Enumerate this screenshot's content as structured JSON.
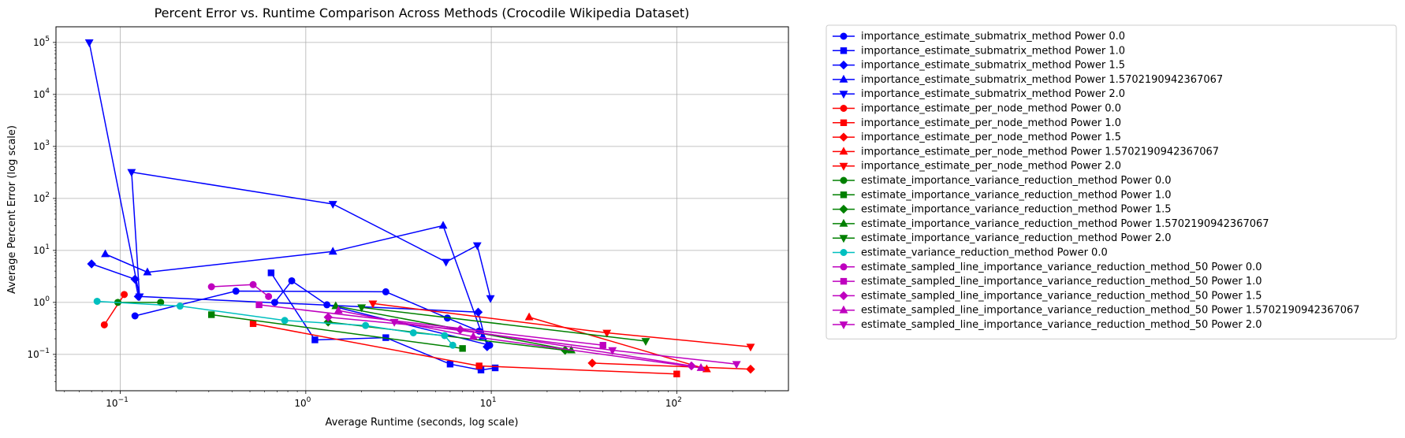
{
  "chart_data": {
    "type": "line",
    "title": "Percent Error vs. Runtime Comparison Across Methods (Crocodile Wikipedia Dataset)",
    "xlabel": "Average Runtime (seconds, log scale)",
    "ylabel": "Average Percent Error (log scale)",
    "xscale": "log",
    "yscale": "log",
    "xlim": [
      0.045,
      400
    ],
    "ylim": [
      0.02,
      200000
    ],
    "grid": true,
    "legend_placement": "outside-right",
    "x_ticks": [
      {
        "value": 0.1,
        "base": "10",
        "exp": "−1"
      },
      {
        "value": 1,
        "base": "10",
        "exp": "0"
      },
      {
        "value": 10,
        "base": "10",
        "exp": "1"
      },
      {
        "value": 100,
        "base": "10",
        "exp": "2"
      }
    ],
    "y_ticks": [
      {
        "value": 0.1,
        "base": "10",
        "exp": "−1"
      },
      {
        "value": 1,
        "base": "10",
        "exp": "0"
      },
      {
        "value": 10,
        "base": "10",
        "exp": "1"
      },
      {
        "value": 100,
        "base": "10",
        "exp": "2"
      },
      {
        "value": 1000,
        "base": "10",
        "exp": "3"
      },
      {
        "value": 10000,
        "base": "10",
        "exp": "4"
      },
      {
        "value": 100000,
        "base": "10",
        "exp": "5"
      }
    ],
    "series": [
      {
        "name": "importance_estimate_submatrix_method Power 0.0",
        "color": "#0000ff",
        "marker": "circle",
        "points": [
          [
            0.12,
            0.55
          ],
          [
            0.42,
            1.65
          ],
          [
            2.7,
            1.6
          ],
          [
            5.8,
            0.5
          ],
          [
            8.6,
            0.28
          ],
          [
            9.8,
            0.15
          ],
          [
            1.3,
            0.9
          ],
          [
            0.84,
            2.6
          ],
          [
            0.68,
            1.0
          ]
        ]
      },
      {
        "name": "importance_estimate_submatrix_method Power 1.0",
        "color": "#0000ff",
        "marker": "square",
        "points": [
          [
            0.65,
            3.7
          ],
          [
            1.12,
            0.19
          ],
          [
            2.7,
            0.21
          ],
          [
            6.0,
            0.065
          ],
          [
            8.8,
            0.05
          ],
          [
            10.5,
            0.055
          ]
        ]
      },
      {
        "name": "importance_estimate_submatrix_method Power 1.5",
        "color": "#0000ff",
        "marker": "diamond",
        "points": [
          [
            0.07,
            5.5
          ],
          [
            0.12,
            2.8
          ],
          [
            0.125,
            1.3
          ],
          [
            8.5,
            0.65
          ],
          [
            9.5,
            0.14
          ]
        ]
      },
      {
        "name": "importance_estimate_submatrix_method Power 1.5702190942367067",
        "color": "#0000ff",
        "marker": "triangle-up",
        "points": [
          [
            0.083,
            8.5
          ],
          [
            0.14,
            3.8
          ],
          [
            1.4,
            9.5
          ],
          [
            5.5,
            30
          ],
          [
            9.0,
            0.22
          ]
        ]
      },
      {
        "name": "importance_estimate_submatrix_method Power 2.0",
        "color": "#0000ff",
        "marker": "triangle-down",
        "points": [
          [
            0.068,
            100000
          ],
          [
            0.127,
            1.3
          ],
          [
            0.115,
            320
          ],
          [
            1.4,
            78
          ],
          [
            5.7,
            6.0
          ],
          [
            8.4,
            12.5
          ],
          [
            9.9,
            1.2
          ]
        ]
      },
      {
        "name": "importance_estimate_per_node_method Power 0.0",
        "color": "#ff0000",
        "marker": "circle",
        "points": [
          [
            0.082,
            0.37
          ],
          [
            0.105,
            1.42
          ]
        ]
      },
      {
        "name": "importance_estimate_per_node_method Power 1.0",
        "color": "#ff0000",
        "marker": "square",
        "points": [
          [
            0.52,
            0.39
          ],
          [
            8.6,
            0.06
          ],
          [
            100,
            0.042
          ]
        ]
      },
      {
        "name": "importance_estimate_per_node_method Power 1.5",
        "color": "#ff0000",
        "marker": "diamond",
        "points": [
          [
            35,
            0.068
          ],
          [
            250,
            0.052
          ]
        ]
      },
      {
        "name": "importance_estimate_per_node_method Power 1.5702190942367067",
        "color": "#ff0000",
        "marker": "triangle-up",
        "points": [
          [
            16,
            0.52
          ],
          [
            145,
            0.052
          ]
        ]
      },
      {
        "name": "importance_estimate_per_node_method Power 2.0",
        "color": "#ff0000",
        "marker": "triangle-down",
        "points": [
          [
            2.3,
            0.95
          ],
          [
            42,
            0.26
          ],
          [
            250,
            0.14
          ]
        ]
      },
      {
        "name": "estimate_importance_variance_reduction_method Power 0.0",
        "color": "#008000",
        "marker": "circle",
        "points": [
          [
            0.097,
            1.0
          ],
          [
            0.165,
            1.0
          ]
        ]
      },
      {
        "name": "estimate_importance_variance_reduction_method Power 1.0",
        "color": "#008000",
        "marker": "square",
        "points": [
          [
            0.31,
            0.58
          ],
          [
            7.0,
            0.13
          ]
        ]
      },
      {
        "name": "estimate_importance_variance_reduction_method Power 1.5",
        "color": "#008000",
        "marker": "diamond",
        "points": [
          [
            1.32,
            0.42
          ],
          [
            25,
            0.12
          ]
        ]
      },
      {
        "name": "estimate_importance_variance_reduction_method Power 1.5702190942367067",
        "color": "#008000",
        "marker": "triangle-up",
        "points": [
          [
            1.45,
            0.85
          ],
          [
            27,
            0.12
          ]
        ]
      },
      {
        "name": "estimate_importance_variance_reduction_method Power 2.0",
        "color": "#008000",
        "marker": "triangle-down",
        "points": [
          [
            2.0,
            0.8
          ],
          [
            68,
            0.18
          ]
        ]
      },
      {
        "name": "estimate_variance_reduction_method Power 0.0",
        "color": "#00bfbf",
        "marker": "circle",
        "points": [
          [
            0.075,
            1.05
          ],
          [
            0.21,
            0.85
          ],
          [
            0.77,
            0.45
          ],
          [
            2.1,
            0.36
          ],
          [
            3.8,
            0.26
          ],
          [
            5.6,
            0.23
          ],
          [
            6.2,
            0.15
          ]
        ]
      },
      {
        "name": "estimate_sampled_line_importance_variance_reduction_method_50 Power 0.0",
        "color": "#bf00bf",
        "marker": "circle",
        "points": [
          [
            0.31,
            2.0
          ],
          [
            0.52,
            2.2
          ],
          [
            0.63,
            1.3
          ]
        ]
      },
      {
        "name": "estimate_sampled_line_importance_variance_reduction_method_50 Power 1.0",
        "color": "#bf00bf",
        "marker": "square",
        "points": [
          [
            0.56,
            0.9
          ],
          [
            40,
            0.15
          ]
        ]
      },
      {
        "name": "estimate_sampled_line_importance_variance_reduction_method_50 Power 1.5",
        "color": "#bf00bf",
        "marker": "diamond",
        "points": [
          [
            1.32,
            0.52
          ],
          [
            6.8,
            0.3
          ],
          [
            120,
            0.06
          ]
        ]
      },
      {
        "name": "estimate_sampled_line_importance_variance_reduction_method_50 Power 1.5702190942367067",
        "color": "#bf00bf",
        "marker": "triangle-up",
        "points": [
          [
            1.5,
            0.7
          ],
          [
            8.0,
            0.22
          ],
          [
            135,
            0.055
          ]
        ]
      },
      {
        "name": "estimate_sampled_line_importance_variance_reduction_method_50 Power 2.0",
        "color": "#bf00bf",
        "marker": "triangle-down",
        "points": [
          [
            3.0,
            0.42
          ],
          [
            45,
            0.12
          ],
          [
            210,
            0.065
          ]
        ]
      }
    ]
  }
}
